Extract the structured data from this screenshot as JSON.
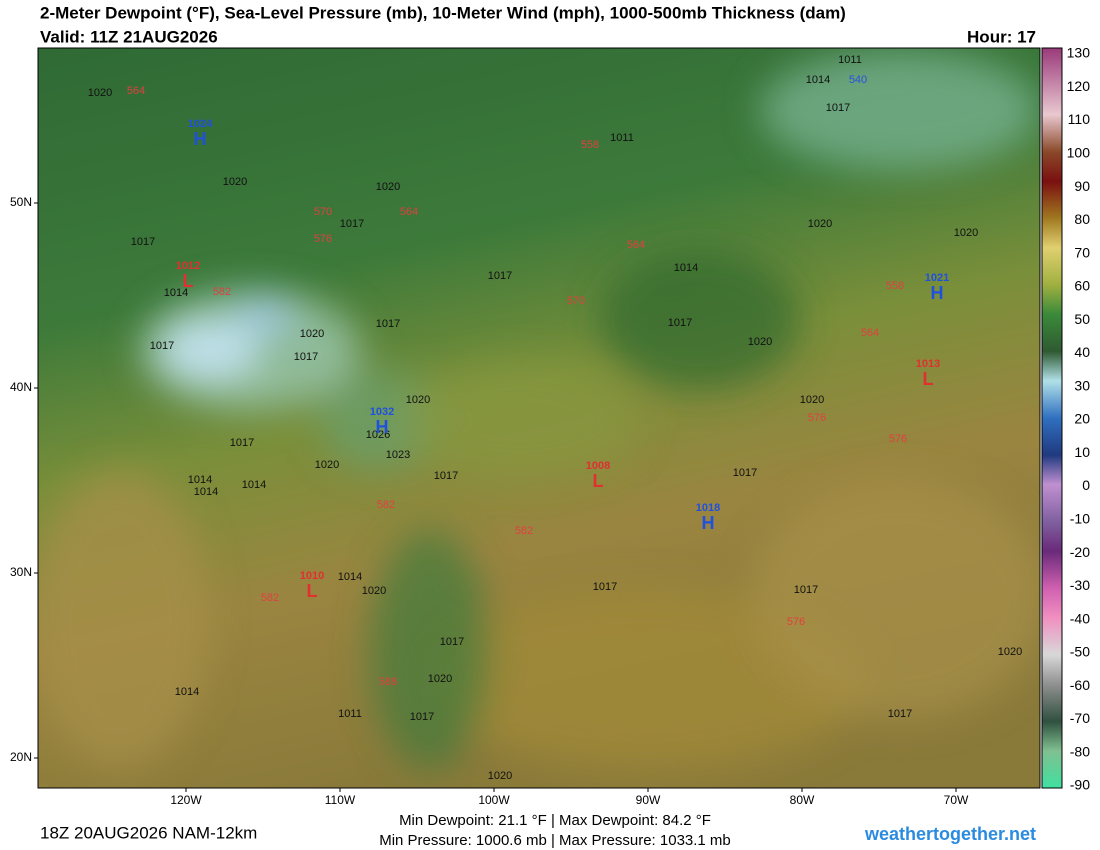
{
  "header": {
    "title": "2-Meter Dewpoint (°F), Sea-Level Pressure (mb), 10-Meter Wind (mph), 1000-500mb Thickness (dam)",
    "valid": "Valid: 11Z 21AUG2026",
    "hour": "Hour: 17"
  },
  "map": {
    "lat_labels": [
      "50N",
      "40N",
      "30N",
      "20N"
    ],
    "lon_labels": [
      "120W",
      "110W",
      "100W",
      "90W",
      "80W",
      "70W"
    ],
    "pressure_centers": [
      {
        "type": "H",
        "value": "1024"
      },
      {
        "type": "L",
        "value": "1012"
      },
      {
        "type": "H",
        "value": "1032"
      },
      {
        "type": "L",
        "value": "1010"
      },
      {
        "type": "L",
        "value": "1008"
      },
      {
        "type": "H",
        "value": "1018"
      },
      {
        "type": "H",
        "value": "1021"
      },
      {
        "type": "L",
        "value": "1013"
      }
    ],
    "isobar_labels": [
      "1020",
      "1011",
      "1011",
      "1014",
      "1017",
      "1020",
      "1020",
      "1017",
      "1017",
      "1014",
      "1017",
      "1014",
      "1017",
      "1020",
      "1017",
      "1017",
      "1017",
      "1020",
      "1020",
      "1020",
      "1026",
      "1023",
      "1017",
      "1020",
      "1017",
      "1017",
      "1014",
      "1014",
      "1014",
      "1020",
      "1020",
      "1017",
      "1017",
      "1014",
      "1020",
      "1017",
      "1020",
      "1020",
      "1014",
      "1011",
      "1017",
      "1017",
      "1020"
    ],
    "thickness_labels": [
      "564",
      "558",
      "570",
      "564",
      "576",
      "564",
      "582",
      "570",
      "558",
      "564",
      "576",
      "576",
      "582",
      "582",
      "582",
      "576",
      "588",
      "540"
    ]
  },
  "colorbar": {
    "ticks": [
      "130",
      "120",
      "110",
      "100",
      "90",
      "80",
      "70",
      "60",
      "50",
      "40",
      "30",
      "20",
      "10",
      "0",
      "-10",
      "-20",
      "-30",
      "-40",
      "-50",
      "-60",
      "-70",
      "-80",
      "-90"
    ]
  },
  "footer": {
    "run": "18Z 20AUG2026 NAM-12km",
    "dewpoint": "Min Dewpoint:  21.1 °F | Max Dewpoint:  84.2 °F",
    "pressure": "Min Pressure: 1000.6 mb | Max Pressure: 1033.1 mb",
    "site": "weathertogether.net"
  }
}
